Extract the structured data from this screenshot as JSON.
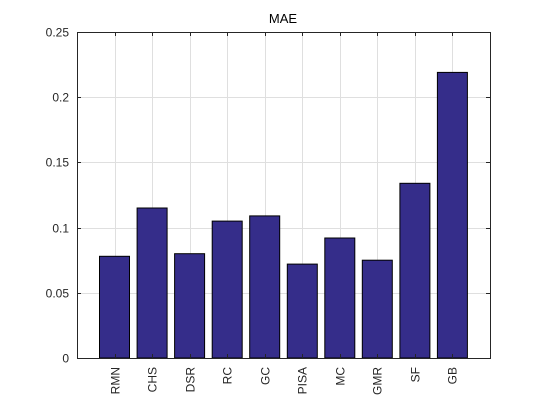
{
  "chart_data": {
    "type": "bar",
    "title": "MAE",
    "xlabel": "",
    "ylabel": "",
    "categories": [
      "RMN",
      "CHS",
      "DSR",
      "RC",
      "GC",
      "PISA",
      "MC",
      "GMR",
      "SF",
      "GB"
    ],
    "values": [
      0.078,
      0.115,
      0.08,
      0.105,
      0.109,
      0.072,
      0.092,
      0.075,
      0.134,
      0.219
    ],
    "ylim": [
      0,
      0.25
    ],
    "yticks": [
      0,
      0.05,
      0.1,
      0.15,
      0.2,
      0.25
    ],
    "ytick_labels": [
      "0",
      "0.05",
      "0.1",
      "0.15",
      "0.2",
      "0.25"
    ],
    "grid": true,
    "colors": {
      "bar": "#352D8A",
      "bar_edge": "#000000",
      "grid": "#DFDFDF",
      "axis": "#262626"
    }
  }
}
